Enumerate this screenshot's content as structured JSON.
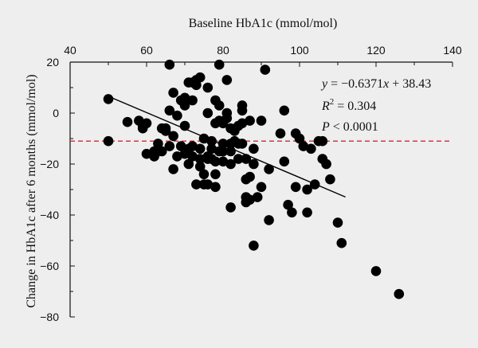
{
  "chart_data": {
    "type": "scatter",
    "title": "",
    "xlabel": "Baseline HbA1c (mmol/mol)",
    "ylabel": "Change in HbA1c after 6 months (mmol/mol)",
    "xlim": [
      40,
      140
    ],
    "ylim": [
      -80,
      20
    ],
    "x_ticks": [
      40,
      60,
      80,
      100,
      120,
      140
    ],
    "y_ticks": [
      20,
      0,
      -20,
      -40,
      -60,
      -80
    ],
    "x_axis_position": "top",
    "grid": false,
    "colors": {
      "points": "#000000",
      "regression": "#000000",
      "reference": "#d9262c",
      "background": "#eeeeee"
    },
    "reference_line": {
      "y": -11,
      "style": "dashed"
    },
    "regression": {
      "slope": -0.6371,
      "intercept": 38.43,
      "x_range": [
        50,
        112
      ],
      "equation_parts": [
        "y",
        " = −0.6371",
        "x",
        " + 38.43"
      ],
      "r2_parts": [
        "R",
        "2",
        " = 0.304"
      ],
      "p_parts": [
        "P",
        " < 0.0001"
      ]
    },
    "points": [
      [
        50,
        5.5
      ],
      [
        50,
        -11
      ],
      [
        55,
        -3.5
      ],
      [
        58,
        -3
      ],
      [
        59,
        -6
      ],
      [
        59,
        -5
      ],
      [
        60,
        -16
      ],
      [
        60,
        -4
      ],
      [
        62,
        -17
      ],
      [
        62,
        -15
      ],
      [
        63,
        -12
      ],
      [
        63,
        -15
      ],
      [
        64,
        -15
      ],
      [
        64,
        -6
      ],
      [
        65,
        -6
      ],
      [
        65,
        -7
      ],
      [
        66,
        19
      ],
      [
        66,
        1
      ],
      [
        66,
        -13
      ],
      [
        67,
        -9
      ],
      [
        67,
        -22
      ],
      [
        67,
        8
      ],
      [
        68,
        -17
      ],
      [
        68,
        -1
      ],
      [
        69,
        5
      ],
      [
        69,
        -13
      ],
      [
        70,
        6
      ],
      [
        70,
        3
      ],
      [
        70,
        -5
      ],
      [
        70,
        -16
      ],
      [
        71,
        12
      ],
      [
        71,
        -14
      ],
      [
        71,
        -20
      ],
      [
        72,
        12
      ],
      [
        72,
        5
      ],
      [
        72,
        -13
      ],
      [
        72,
        -17
      ],
      [
        73,
        13
      ],
      [
        73,
        11
      ],
      [
        73,
        -28
      ],
      [
        74,
        14
      ],
      [
        74,
        -18
      ],
      [
        74,
        -14
      ],
      [
        74,
        -21
      ],
      [
        75,
        -24
      ],
      [
        75,
        -28
      ],
      [
        75,
        -10
      ],
      [
        76,
        10
      ],
      [
        76,
        0
      ],
      [
        76,
        -17
      ],
      [
        76,
        -18
      ],
      [
        76,
        -28
      ],
      [
        77,
        -11
      ],
      [
        77,
        -18
      ],
      [
        77,
        -14
      ],
      [
        78,
        -24
      ],
      [
        78,
        -19
      ],
      [
        78,
        -29
      ],
      [
        78,
        5
      ],
      [
        78,
        -4
      ],
      [
        79,
        19
      ],
      [
        79,
        3
      ],
      [
        79,
        -3
      ],
      [
        79,
        -15
      ],
      [
        80,
        -4
      ],
      [
        80,
        -12
      ],
      [
        80,
        -15
      ],
      [
        80,
        -19
      ],
      [
        81,
        13
      ],
      [
        81,
        -2
      ],
      [
        81,
        0
      ],
      [
        82,
        -6
      ],
      [
        82,
        -12
      ],
      [
        82,
        -15
      ],
      [
        82,
        -20
      ],
      [
        82,
        -37
      ],
      [
        83,
        -11
      ],
      [
        83,
        -7
      ],
      [
        84,
        -12
      ],
      [
        84,
        -5
      ],
      [
        84,
        -18
      ],
      [
        85,
        3
      ],
      [
        85,
        1
      ],
      [
        85,
        -4
      ],
      [
        85,
        -12
      ],
      [
        86,
        -18
      ],
      [
        86,
        -26
      ],
      [
        86,
        -33
      ],
      [
        86,
        -35
      ],
      [
        87,
        -25
      ],
      [
        87,
        -3
      ],
      [
        87,
        -34
      ],
      [
        88,
        -14
      ],
      [
        88,
        -20
      ],
      [
        88,
        -52
      ],
      [
        89,
        -33
      ],
      [
        90,
        -3
      ],
      [
        90,
        -29
      ],
      [
        91,
        17
      ],
      [
        92,
        -22
      ],
      [
        92,
        -42
      ],
      [
        95,
        -8
      ],
      [
        96,
        1
      ],
      [
        96,
        -19
      ],
      [
        97,
        -36
      ],
      [
        98,
        -39
      ],
      [
        99,
        -29
      ],
      [
        99,
        -8
      ],
      [
        100,
        -10
      ],
      [
        101,
        -13
      ],
      [
        102,
        -30
      ],
      [
        102,
        -39
      ],
      [
        103,
        -14
      ],
      [
        104,
        -28
      ],
      [
        105,
        -11
      ],
      [
        106,
        -11
      ],
      [
        106,
        -18
      ],
      [
        107,
        -20
      ],
      [
        108,
        -26
      ],
      [
        110,
        -43
      ],
      [
        111,
        -51
      ],
      [
        120,
        -62
      ],
      [
        126,
        -71
      ]
    ]
  }
}
